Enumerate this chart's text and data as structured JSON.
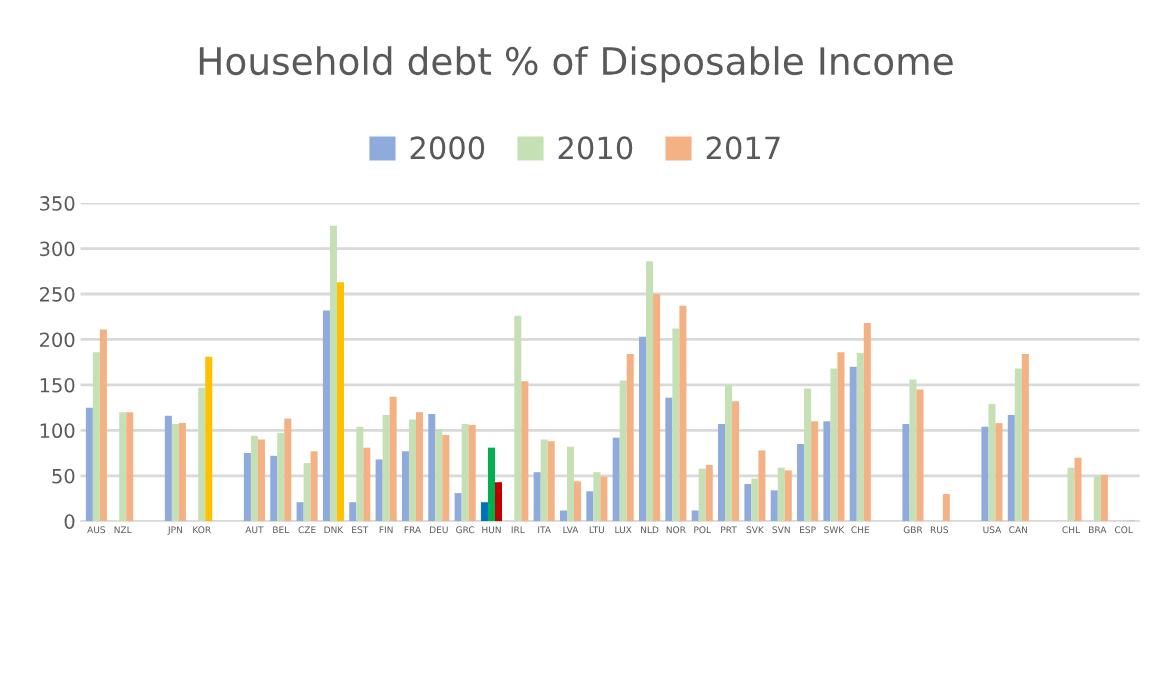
{
  "chart_data": {
    "type": "bar",
    "title": "Household debt % of Disposable Income",
    "categories": [
      "AUS",
      "NZL",
      null,
      "JPN",
      "KOR",
      null,
      "AUT",
      "BEL",
      "CZE",
      "DNK",
      "EST",
      "FIN",
      "FRA",
      "DEU",
      "GRC",
      "HUN",
      "IRL",
      "ITA",
      "LVA",
      "LTU",
      "LUX",
      "NLD",
      "NOR",
      "POL",
      "PRT",
      "SVK",
      "SVN",
      "ESP",
      "SWK",
      "CHE",
      null,
      "GBR",
      "RUS",
      null,
      "USA",
      "CAN",
      null,
      "CHL",
      "BRA",
      "COL"
    ],
    "series": [
      {
        "name": "2000",
        "color": "#8faadc",
        "values": [
          125,
          null,
          null,
          116,
          null,
          null,
          75,
          72,
          21,
          232,
          21,
          68,
          77,
          118,
          31,
          21,
          null,
          54,
          12,
          33,
          92,
          203,
          136,
          12,
          107,
          41,
          34,
          85,
          110,
          170,
          null,
          107,
          null,
          null,
          104,
          117,
          null,
          null,
          null,
          null
        ],
        "colors": [
          "#8faadc",
          "#8faadc",
          "#8faadc",
          "#8faadc",
          "#8faadc",
          "#8faadc",
          "#8faadc",
          "#8faadc",
          "#8faadc",
          "#8faadc",
          "#8faadc",
          "#8faadc",
          "#8faadc",
          "#8faadc",
          "#8faadc",
          "#0070c0",
          "#8faadc",
          "#8faadc",
          "#8faadc",
          "#8faadc",
          "#8faadc",
          "#8faadc",
          "#8faadc",
          "#8faadc",
          "#8faadc",
          "#8faadc",
          "#8faadc",
          "#8faadc",
          "#8faadc",
          "#8faadc",
          "#8faadc",
          "#8faadc",
          "#8faadc",
          "#8faadc",
          "#8faadc",
          "#8faadc",
          "#8faadc",
          "#8faadc",
          "#8faadc",
          "#8faadc"
        ]
      },
      {
        "name": "2010",
        "color": "#c5e0b4",
        "values": [
          186,
          120,
          null,
          107,
          147,
          null,
          94,
          97,
          64,
          325,
          104,
          117,
          112,
          101,
          107,
          81,
          226,
          90,
          82,
          54,
          155,
          286,
          212,
          58,
          150,
          47,
          59,
          146,
          168,
          185,
          null,
          156,
          null,
          null,
          129,
          168,
          null,
          59,
          49,
          null
        ],
        "colors": [
          "#c5e0b4",
          "#c5e0b4",
          "#c5e0b4",
          "#c5e0b4",
          "#c5e0b4",
          "#c5e0b4",
          "#c5e0b4",
          "#c5e0b4",
          "#c5e0b4",
          "#c5e0b4",
          "#c5e0b4",
          "#c5e0b4",
          "#c5e0b4",
          "#c5e0b4",
          "#c5e0b4",
          "#00b050",
          "#c5e0b4",
          "#c5e0b4",
          "#c5e0b4",
          "#c5e0b4",
          "#c5e0b4",
          "#c5e0b4",
          "#c5e0b4",
          "#c5e0b4",
          "#c5e0b4",
          "#c5e0b4",
          "#c5e0b4",
          "#c5e0b4",
          "#c5e0b4",
          "#c5e0b4",
          "#c5e0b4",
          "#c5e0b4",
          "#c5e0b4",
          "#c5e0b4",
          "#c5e0b4",
          "#c5e0b4",
          "#c5e0b4",
          "#c5e0b4",
          "#c5e0b4",
          "#c5e0b4"
        ]
      },
      {
        "name": "2017",
        "color": "#f4b183",
        "values": [
          211,
          120,
          null,
          108,
          181,
          null,
          90,
          113,
          77,
          263,
          81,
          137,
          120,
          95,
          106,
          43,
          154,
          88,
          44,
          49,
          184,
          250,
          237,
          62,
          132,
          78,
          56,
          110,
          186,
          218,
          null,
          145,
          30,
          null,
          108,
          184,
          null,
          70,
          51,
          1
        ],
        "colors": [
          "#f4b183",
          "#f4b183",
          "#f4b183",
          "#f4b183",
          "#ffc000",
          "#f4b183",
          "#f4b183",
          "#f4b183",
          "#f4b183",
          "#ffc000",
          "#f4b183",
          "#f4b183",
          "#f4b183",
          "#f4b183",
          "#f4b183",
          "#c00000",
          "#f4b183",
          "#f4b183",
          "#f4b183",
          "#f4b183",
          "#f4b183",
          "#f4b183",
          "#f4b183",
          "#f4b183",
          "#f4b183",
          "#f4b183",
          "#f4b183",
          "#f4b183",
          "#f4b183",
          "#f4b183",
          "#f4b183",
          "#f4b183",
          "#f4b183",
          "#f4b183",
          "#f4b183",
          "#f4b183",
          "#f4b183",
          "#f4b183",
          "#f4b183",
          "#f4b183"
        ]
      }
    ],
    "ylim": [
      0,
      350
    ],
    "yticks": [
      0,
      50,
      100,
      150,
      200,
      250,
      300,
      350
    ],
    "grid": "y",
    "legend": "top"
  }
}
